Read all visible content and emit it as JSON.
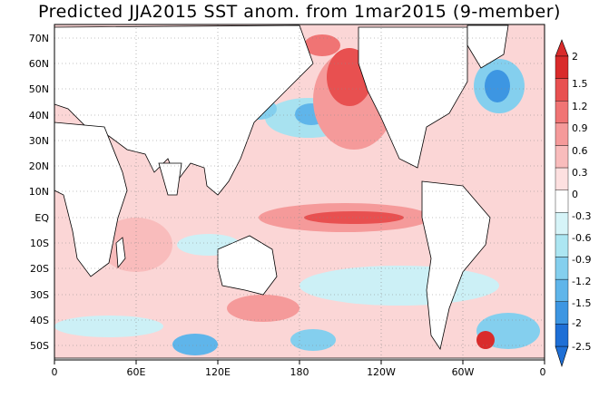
{
  "title": "Predicted JJA2015 SST anom. from 1mar2015 (9-member)",
  "map": {
    "lon_labels": [
      "0",
      "60E",
      "120E",
      "180",
      "120W",
      "60W",
      "0"
    ],
    "lat_labels": [
      "70N",
      "60N",
      "50N",
      "40N",
      "30N",
      "20N",
      "10N",
      "EQ",
      "10S",
      "20S",
      "30S",
      "40S",
      "50S"
    ]
  },
  "colorbar": {
    "labels": [
      "2",
      "1.5",
      "1.2",
      "0.9",
      "0.6",
      "0.3",
      "0",
      "-0.3",
      "-0.6",
      "-0.9",
      "-1.2",
      "-1.5",
      "-2",
      "-2.5"
    ],
    "colors": [
      "#d92b2b",
      "#e85050",
      "#f07474",
      "#f59a9a",
      "#f9bcbc",
      "#fde0e0",
      "#ffffff",
      "#d6f4f8",
      "#ace6f2",
      "#84cfee",
      "#5fb5ea",
      "#3d96e2",
      "#1e6fd6"
    ]
  }
}
